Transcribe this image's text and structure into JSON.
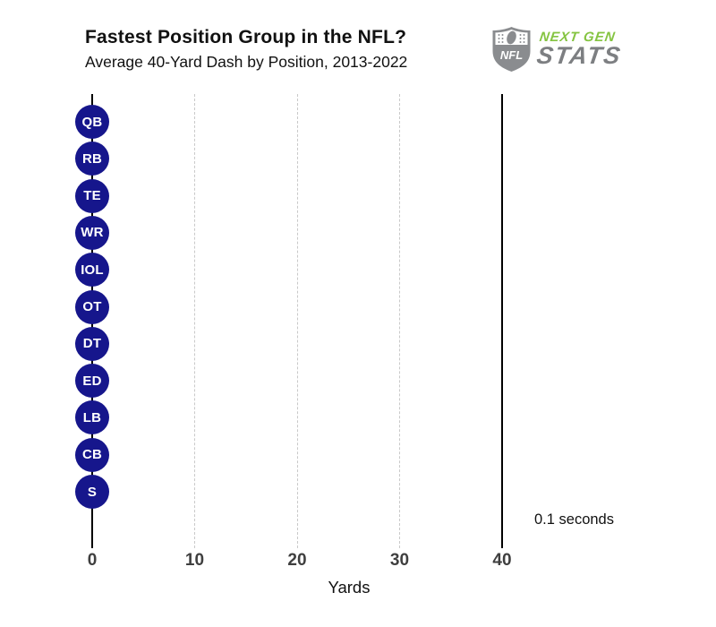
{
  "header": {
    "title": "Fastest Position Group in the NFL?",
    "subtitle": "Average 40-Yard Dash by Position, 2013-2022"
  },
  "logo": {
    "shield_text": "NFL",
    "line1": "NEXT GEN",
    "line2": "STATS",
    "green": "#85c441",
    "gray": "#7d7f82",
    "shield_gray": "#8a8c8f"
  },
  "chart_data": {
    "type": "scatter",
    "title": "Fastest Position Group in the NFL?",
    "subtitle": "Average 40-Yard Dash by Position, 2013-2022",
    "xlabel": "Yards",
    "xlim": [
      0,
      40
    ],
    "xticks": [
      0,
      10,
      20,
      30,
      40
    ],
    "solid_vlines": [
      0,
      40
    ],
    "dashed_vlines": [
      10,
      20,
      30
    ],
    "grid": "vertical-dashed",
    "legend": "none",
    "categories": [
      "QB",
      "RB",
      "TE",
      "WR",
      "IOL",
      "OT",
      "DT",
      "ED",
      "LB",
      "CB",
      "S"
    ],
    "values": [
      0,
      0,
      0,
      0,
      0,
      0,
      0,
      0,
      0,
      0,
      0
    ],
    "marker_color": "#16168c",
    "marker_label_color": "#ffffff",
    "time_annotation": "0.1 seconds"
  }
}
